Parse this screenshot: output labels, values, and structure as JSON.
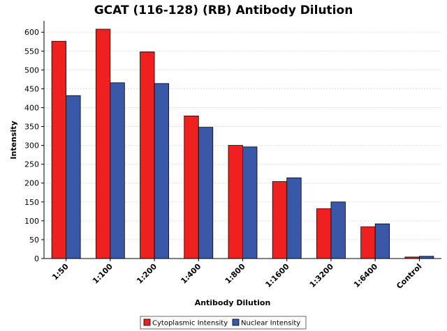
{
  "chart_data": {
    "type": "bar",
    "title": "GCAT (116-128) (RB) Antibody Dilution",
    "xlabel": "Antibody Dilution",
    "ylabel": "Intensity",
    "categories": [
      "1:50",
      "1:100",
      "1:200",
      "1:400",
      "1:800",
      "1:1600",
      "1:3200",
      "1:6400",
      "Control"
    ],
    "series": [
      {
        "name": "Cytoplasmic Intensity",
        "color": "#ee2020",
        "values": [
          576,
          608,
          548,
          378,
          300,
          204,
          132,
          84,
          4
        ]
      },
      {
        "name": "Nuclear Intensity",
        "color": "#3a58a8",
        "values": [
          432,
          466,
          464,
          348,
          296,
          214,
          150,
          92,
          6
        ]
      }
    ],
    "ylim": [
      0,
      630
    ],
    "yticks": [
      0,
      50,
      100,
      150,
      200,
      250,
      300,
      350,
      400,
      450,
      500,
      550,
      600
    ],
    "grid": true,
    "legend_position": "bottom"
  }
}
